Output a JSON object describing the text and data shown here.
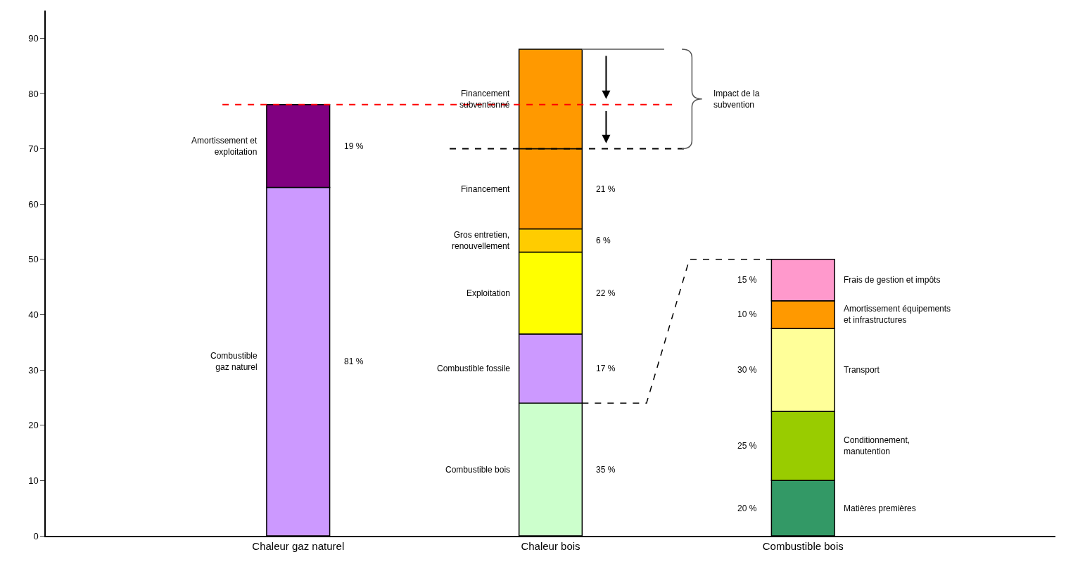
{
  "chart_data": {
    "type": "bar",
    "stacked": true,
    "legend": false,
    "categories": [
      "Chaleur gaz naturel",
      "Chaleur bois",
      "Combustible bois"
    ],
    "ylim": [
      0,
      95
    ],
    "yticks": [
      0,
      10,
      20,
      30,
      40,
      50,
      60,
      70,
      80,
      90
    ],
    "series": [
      {
        "name": "Combustible\ngaz naturel",
        "color": "#cc99ff",
        "values": [
          63,
          null,
          null
        ]
      },
      {
        "name": "Amortissement et\nexploitation",
        "color": "#800080",
        "values": [
          15,
          null,
          null
        ]
      },
      {
        "name": "Combustible bois",
        "color": "#ccffcc",
        "values": [
          null,
          24,
          null
        ]
      },
      {
        "name": "Combustible fossile",
        "color": "#cc99ff",
        "values": [
          null,
          12.5,
          null
        ]
      },
      {
        "name": "Exploitation",
        "color": "#ffff00",
        "values": [
          null,
          14.8,
          null
        ]
      },
      {
        "name": "Gros entretien,\nrenouvellement",
        "color": "#ffcc00",
        "values": [
          null,
          4.2,
          null
        ]
      },
      {
        "name": "Financement",
        "color": "#ff9900",
        "values": [
          null,
          14.5,
          null
        ]
      },
      {
        "name": "Financement\nsubventionné",
        "color": "#ff9900",
        "values": [
          null,
          18,
          null
        ]
      },
      {
        "name": "Matières premières",
        "color": "#339966",
        "values": [
          null,
          null,
          10
        ]
      },
      {
        "name": "Conditionnement,\nmanutention",
        "color": "#99cc00",
        "values": [
          null,
          null,
          12.5
        ]
      },
      {
        "name": "Transport",
        "color": "#ffff99",
        "values": [
          null,
          null,
          15
        ]
      },
      {
        "name": "Amortissement équipements\net infrastructures",
        "color": "#ff9900",
        "values": [
          null,
          null,
          5
        ]
      },
      {
        "name": "Frais de gestion et impôts",
        "color": "#ff99cc",
        "values": [
          null,
          null,
          7.5
        ]
      }
    ],
    "ref_lines": [
      {
        "axis": "y",
        "value": 78,
        "color": "#ff0000",
        "line_style": "dashed"
      },
      {
        "axis": "y",
        "value": 70,
        "color": "#000000",
        "line_style": "dashed"
      },
      {
        "axis": "y",
        "value": 88,
        "color": "#808080",
        "line_style": "solid"
      }
    ],
    "annotations": [
      "81 %",
      "19 %",
      "35 %",
      "17 %",
      "22 %",
      "6 %",
      "21 %",
      null,
      "20 %",
      "25 %",
      "30 %",
      "10 %",
      "15 %",
      "Impact de la\nsubvention"
    ]
  }
}
